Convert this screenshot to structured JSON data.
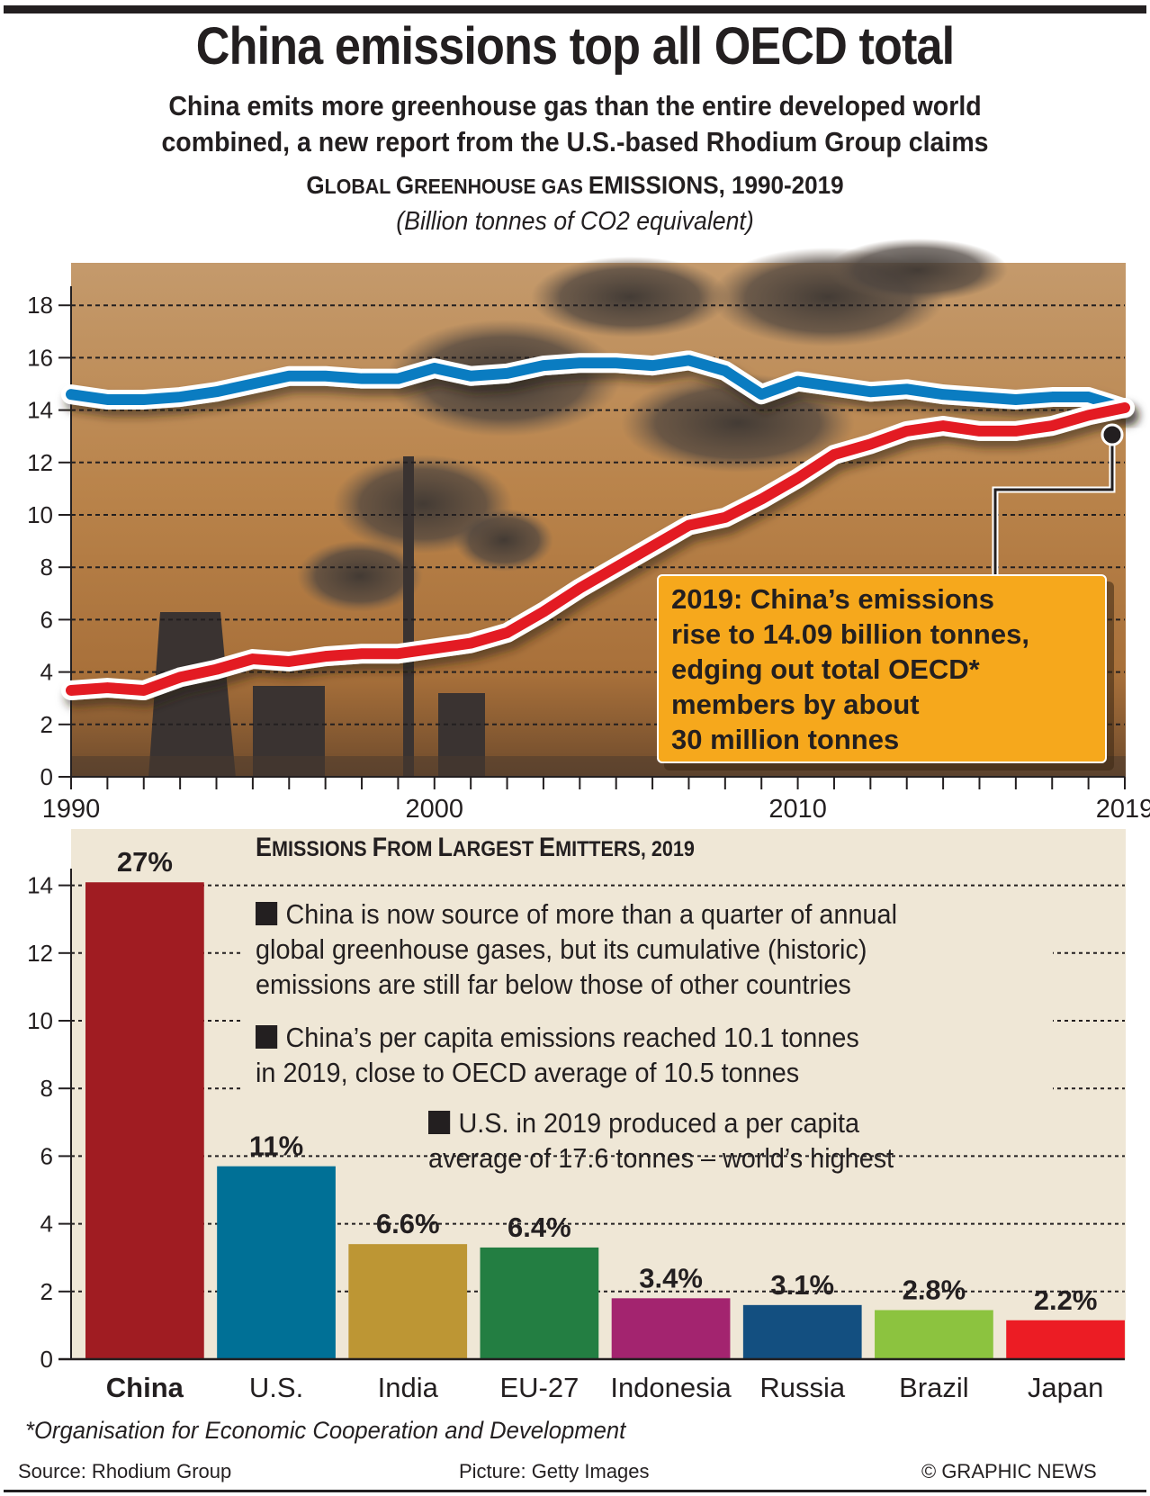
{
  "header": {
    "title": "China emissions top all OECD total",
    "subtitle_lines": [
      "China emits more greenhouse gas than the entire developed world",
      "combined, a new report from the U.S.-based Rhodium Group claims"
    ]
  },
  "line_chart_header": {
    "title_parts": [
      "G",
      "LOBAL ",
      "G",
      "REENHOUSE GAS ",
      "E",
      "MISSIONS, 1990-2019"
    ],
    "units": "(Billion tonnes of CO2 equivalent)"
  },
  "callout": {
    "lines": [
      "2019: China’s emissions",
      "rise to 14.09 billion tonnes,",
      "edging out total OECD*",
      "members by about",
      "30 million tonnes"
    ]
  },
  "bar_chart_header": {
    "title_parts": [
      "E",
      "MISSIONS ",
      "F",
      "ROM ",
      "L",
      "ARGEST ",
      "E",
      "MITTERS, 2019"
    ]
  },
  "notes": [
    {
      "lines": [
        "China is now source of more than a quarter of annual",
        "global greenhouse gases, but its cumulative (historic)",
        "emissions are still far below those of other countries"
      ]
    },
    {
      "lines": [
        "China’s per capita emissions reached 10.1 tonnes",
        "in 2019, close to OECD average of 10.5 tonnes"
      ]
    },
    {
      "lines": [
        "U.S. in 2019 produced a per capita",
        "average of 17.6 tonnes – world’s highest"
      ]
    }
  ],
  "footer": {
    "footnote": "*Organisation for Economic Cooperation and Development",
    "source": "Source: Rhodium Group",
    "picture": "Picture: Getty Images",
    "copyright": "© GRAPHIC NEWS"
  },
  "chart_data": [
    {
      "type": "line",
      "title": "Global Greenhouse gas Emissions, 1990-2019",
      "subtitle": "(Billion tonnes of CO2 equivalent)",
      "xlabel": "",
      "ylabel": "",
      "x": [
        1990,
        1991,
        1992,
        1993,
        1994,
        1995,
        1996,
        1997,
        1998,
        1999,
        2000,
        2001,
        2002,
        2003,
        2004,
        2005,
        2006,
        2007,
        2008,
        2009,
        2010,
        2011,
        2012,
        2013,
        2014,
        2015,
        2016,
        2017,
        2018,
        2019
      ],
      "x_tick_labels": [
        "1990",
        "2000",
        "2010",
        "2019"
      ],
      "x_tick_label_years": [
        1990,
        2000,
        2010,
        2019
      ],
      "xlim": [
        1990,
        2019
      ],
      "ylim": [
        0,
        19
      ],
      "y_ticks": [
        0,
        2,
        4,
        6,
        8,
        10,
        12,
        14,
        16,
        18
      ],
      "grid": true,
      "legend": "none",
      "series": [
        {
          "name": "OECD total",
          "color": "#0a7cc1",
          "values": [
            14.6,
            14.4,
            14.4,
            14.5,
            14.7,
            15.0,
            15.3,
            15.3,
            15.2,
            15.2,
            15.6,
            15.3,
            15.4,
            15.7,
            15.8,
            15.8,
            15.7,
            15.9,
            15.5,
            14.6,
            15.1,
            14.9,
            14.7,
            14.8,
            14.6,
            14.5,
            14.4,
            14.5,
            14.5,
            14.06
          ]
        },
        {
          "name": "China",
          "color": "#e31b23",
          "values": [
            3.3,
            3.4,
            3.3,
            3.8,
            4.1,
            4.5,
            4.4,
            4.6,
            4.7,
            4.7,
            4.9,
            5.1,
            5.5,
            6.3,
            7.2,
            8.0,
            8.8,
            9.6,
            9.9,
            10.6,
            11.4,
            12.3,
            12.7,
            13.2,
            13.4,
            13.2,
            13.2,
            13.4,
            13.8,
            14.09
          ]
        }
      ],
      "annotations": [
        "2019: China’s emissions rise to 14.09 billion tonnes, edging out total OECD* members by about 30 million tonnes"
      ],
      "background": "photo of power station smokestacks at sunset"
    },
    {
      "type": "bar",
      "title": "Emissions From Largest Emitters, 2019",
      "categories": [
        "China",
        "U.S.",
        "India",
        "EU-27",
        "Indonesia",
        "Russia",
        "Brazil",
        "Japan"
      ],
      "values": [
        14.09,
        5.7,
        3.4,
        3.3,
        1.8,
        1.6,
        1.45,
        1.15
      ],
      "data_labels": [
        "27%",
        "11%",
        "6.6%",
        "6.4%",
        "3.4%",
        "3.1%",
        "2.8%",
        "2.2%"
      ],
      "colors": [
        "#a01c22",
        "#007096",
        "#bd9634",
        "#237e42",
        "#a3246f",
        "#134f80",
        "#8cc33f",
        "#ec1c24"
      ],
      "ylim": [
        0,
        14.5
      ],
      "y_ticks": [
        0,
        2,
        4,
        6,
        8,
        10,
        12,
        14
      ],
      "grid": true,
      "legend": "none",
      "xlabel": "",
      "ylabel": ""
    }
  ]
}
